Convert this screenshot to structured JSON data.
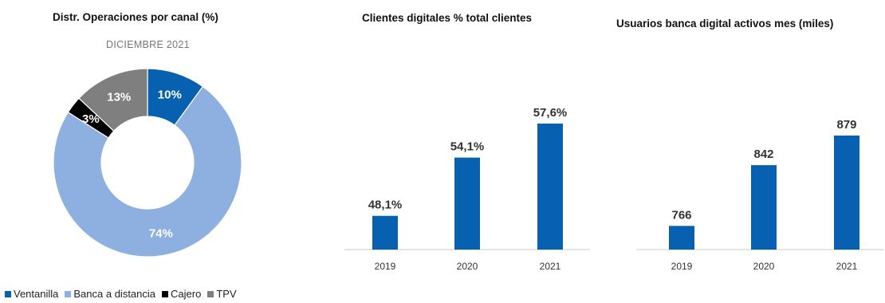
{
  "chart_data": [
    {
      "type": "pie",
      "title": "Distr. Operaciones por canal (%)",
      "subtitle": "DICIEMBRE 2021",
      "slices": [
        {
          "label": "Ventanilla",
          "value": 10,
          "text": "10%",
          "color": "#0860b0"
        },
        {
          "label": "Banca a distancia",
          "value": 74,
          "text": "74%",
          "color": "#8db0e0"
        },
        {
          "label": "Cajero",
          "value": 3,
          "text": "3%",
          "color": "#000000"
        },
        {
          "label": "TPV",
          "value": 13,
          "text": "13%",
          "color": "#7f7f7f"
        }
      ],
      "legend": [
        "Ventanilla",
        "Banca a distancia",
        "Cajero",
        "TPV"
      ],
      "legend_position": "bottom-left"
    },
    {
      "type": "bar",
      "title": "Clientes digitales % total clientes",
      "categories": [
        "2019",
        "2020",
        "2021"
      ],
      "values": [
        48.1,
        54.1,
        57.6
      ],
      "labels": [
        "48,1%",
        "54,1%",
        "57,6%"
      ],
      "color": "#0860b0"
    },
    {
      "type": "bar",
      "title": "Usuarios banca digital activos mes (miles)",
      "categories": [
        "2019",
        "2020",
        "2021"
      ],
      "values": [
        766,
        842,
        879
      ],
      "labels": [
        "766",
        "842",
        "879"
      ],
      "color": "#0860b0"
    }
  ]
}
